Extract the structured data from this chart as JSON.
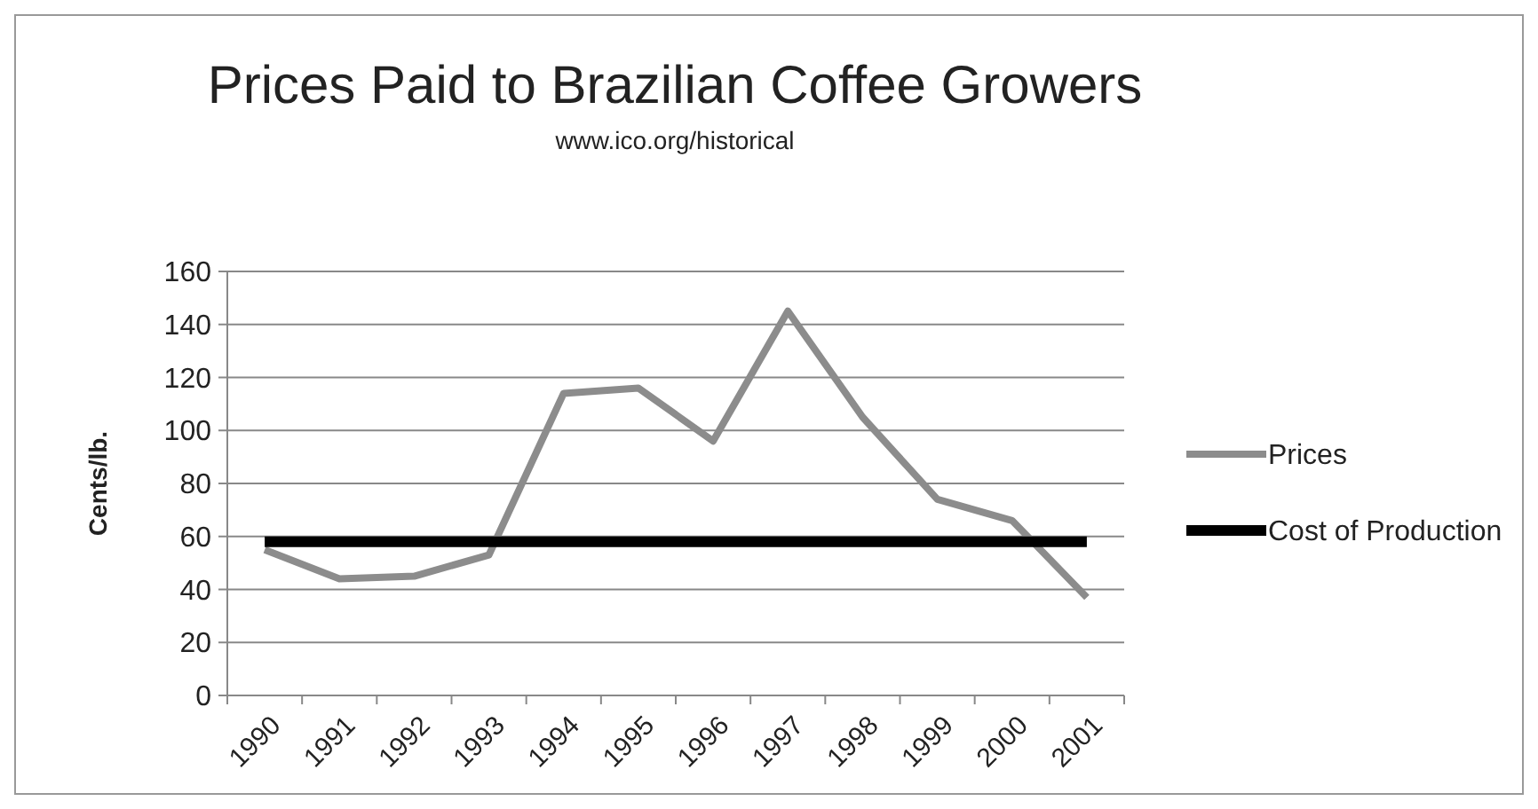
{
  "chart_data": {
    "type": "line",
    "title": "Prices Paid to Brazilian Coffee Growers",
    "subtitle": "www.ico.org/historical",
    "ylabel": "Cents/lb.",
    "categories": [
      "1990",
      "1991",
      "1992",
      "1993",
      "1994",
      "1995",
      "1996",
      "1997",
      "1998",
      "1999",
      "2000",
      "2001"
    ],
    "series": [
      {
        "name": "Prices",
        "color": "#8c8c8c",
        "values": [
          55,
          44,
          45,
          53,
          114,
          116,
          96,
          145,
          105,
          74,
          66,
          37
        ]
      },
      {
        "name": "Cost of Production",
        "color": "#000000",
        "values": [
          58,
          58,
          58,
          58,
          58,
          58,
          58,
          58,
          58,
          58,
          58,
          58
        ]
      }
    ],
    "ylim": [
      0,
      160
    ],
    "yticks": [
      0,
      20,
      40,
      60,
      80,
      100,
      120,
      140,
      160
    ],
    "grid": "y",
    "legend": "right",
    "marker": "none",
    "line_style": "solid"
  }
}
